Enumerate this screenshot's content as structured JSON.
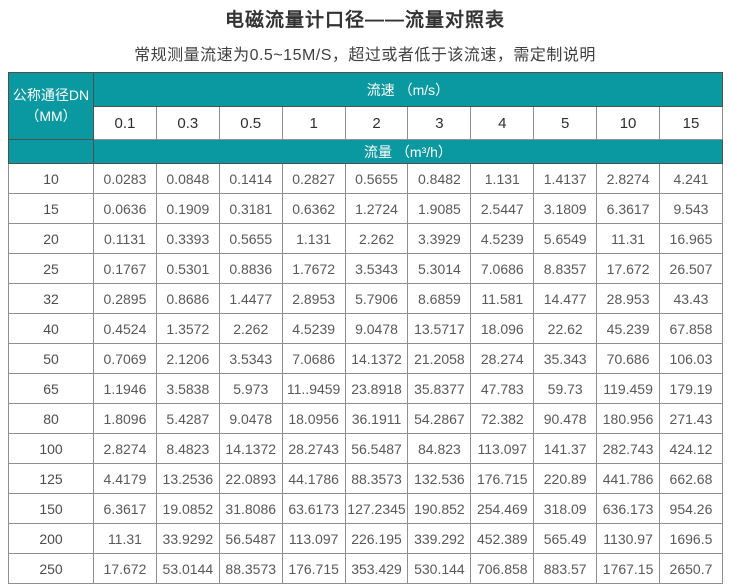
{
  "page": {
    "title": "电磁流量计口径——流量对照表",
    "subtitle": "常规测量流速为0.5~15M/S，超过或者低于该流速，需定制说明"
  },
  "colors": {
    "header_teal": "#0a99a1",
    "header_text": "#ffffff",
    "data_text": "#595959",
    "teal_border": "#4f4f4f",
    "cell_border": "#8f8f8f"
  },
  "table": {
    "corner": {
      "line1": "公称通径DN",
      "line2": "（MM）"
    },
    "velocity_header": "流速 （m/s）",
    "flow_header": "流量 （m³/h）",
    "velocity_values": [
      "0.1",
      "0.3",
      "0.5",
      "1",
      "2",
      "3",
      "4",
      "5",
      "10",
      "15"
    ],
    "rows": [
      {
        "dn": "10",
        "values": [
          "0.0283",
          "0.0848",
          "0.1414",
          "0.2827",
          "0.5655",
          "0.8482",
          "1.131",
          "1.4137",
          "2.8274",
          "4.241"
        ]
      },
      {
        "dn": "15",
        "values": [
          "0.0636",
          "0.1909",
          "0.3181",
          "0.6362",
          "1.2724",
          "1.9085",
          "2.5447",
          "3.1809",
          "6.3617",
          "9.543"
        ]
      },
      {
        "dn": "20",
        "values": [
          "0.1131",
          "0.3393",
          "0.5655",
          "1.131",
          "2.262",
          "3.3929",
          "4.5239",
          "5.6549",
          "11.31",
          "16.965"
        ]
      },
      {
        "dn": "25",
        "values": [
          "0.1767",
          "0.5301",
          "0.8836",
          "1.7672",
          "3.5343",
          "5.3014",
          "7.0686",
          "8.8357",
          "17.672",
          "26.507"
        ]
      },
      {
        "dn": "32",
        "values": [
          "0.2895",
          "0.8686",
          "1.4477",
          "2.8953",
          "5.7906",
          "8.6859",
          "11.581",
          "14.477",
          "28.953",
          "43.43"
        ]
      },
      {
        "dn": "40",
        "values": [
          "0.4524",
          "1.3572",
          "2.262",
          "4.5239",
          "9.0478",
          "13.5717",
          "18.096",
          "22.62",
          "45.239",
          "67.858"
        ]
      },
      {
        "dn": "50",
        "values": [
          "0.7069",
          "2.1206",
          "3.5343",
          "7.0686",
          "14.1372",
          "21.2058",
          "28.274",
          "35.343",
          "70.686",
          "106.03"
        ]
      },
      {
        "dn": "65",
        "values": [
          "1.1946",
          "3.5838",
          "5.973",
          "11..9459",
          "23.8918",
          "35.8377",
          "47.783",
          "59.73",
          "119.459",
          "179.19"
        ]
      },
      {
        "dn": "80",
        "values": [
          "1.8096",
          "5.4287",
          "9.0478",
          "18.0956",
          "36.1911",
          "54.2867",
          "72.382",
          "90.478",
          "180.956",
          "271.43"
        ]
      },
      {
        "dn": "100",
        "values": [
          "2.8274",
          "8.4823",
          "14.1372",
          "28.2743",
          "56.5487",
          "84.823",
          "113.097",
          "141.37",
          "282.743",
          "424.12"
        ]
      },
      {
        "dn": "125",
        "values": [
          "4.4179",
          "13.2536",
          "22.0893",
          "44.1786",
          "88.3573",
          "132.536",
          "176.715",
          "220.89",
          "441.786",
          "662.68"
        ]
      },
      {
        "dn": "150",
        "values": [
          "6.3617",
          "19.0852",
          "31.8086",
          "63.6173",
          "127.2345",
          "190.852",
          "254.469",
          "318.09",
          "636.173",
          "954.26"
        ]
      },
      {
        "dn": "200",
        "values": [
          "11.31",
          "33.9292",
          "56.5487",
          "113.097",
          "226.195",
          "339.292",
          "452.389",
          "565.49",
          "1130.97",
          "1696.5"
        ]
      },
      {
        "dn": "250",
        "values": [
          "17.672",
          "53.0144",
          "88.3573",
          "176.715",
          "353.429",
          "530.144",
          "706.858",
          "883.57",
          "1767.15",
          "2650.7"
        ]
      }
    ]
  }
}
